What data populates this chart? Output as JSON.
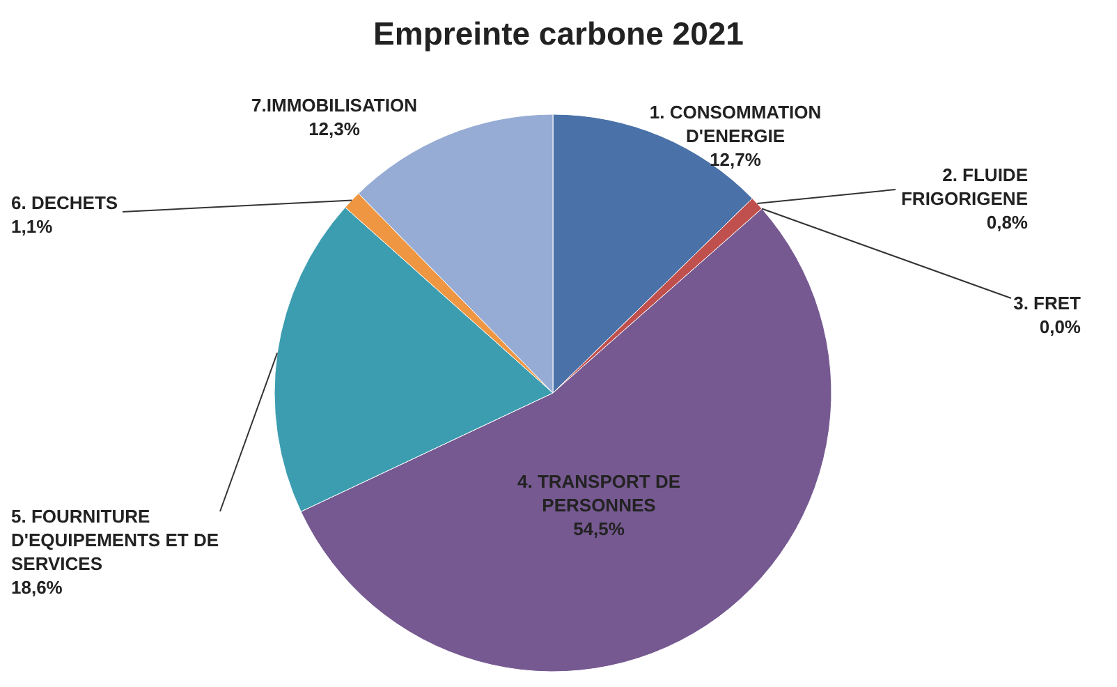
{
  "chart_data": {
    "type": "pie",
    "title": "Empreinte carbone 2021",
    "categories": [
      "1. CONSOMMATION\nD'ENERGIE",
      "2. FLUIDE\nFRIGORIGENE",
      "3. FRET",
      "4. TRANSPORT DE\nPERSONNES",
      "5. FOURNITURE\nD'EQUIPEMENTS ET DE\nSERVICES",
      "6. DECHETS",
      "7.IMMOBILISATION"
    ],
    "values": [
      12.7,
      0.8,
      0.0,
      54.5,
      18.6,
      1.1,
      12.3
    ],
    "colors": [
      "#4a72a8",
      "#c0504d",
      "#9bbb59",
      "#765991",
      "#3c9db0",
      "#ef9642",
      "#97acd4"
    ],
    "value_labels": [
      "12,7%",
      "0,8%",
      "0,0%",
      "54,5%",
      "18,6%",
      "1,1%",
      "12,3%"
    ]
  }
}
